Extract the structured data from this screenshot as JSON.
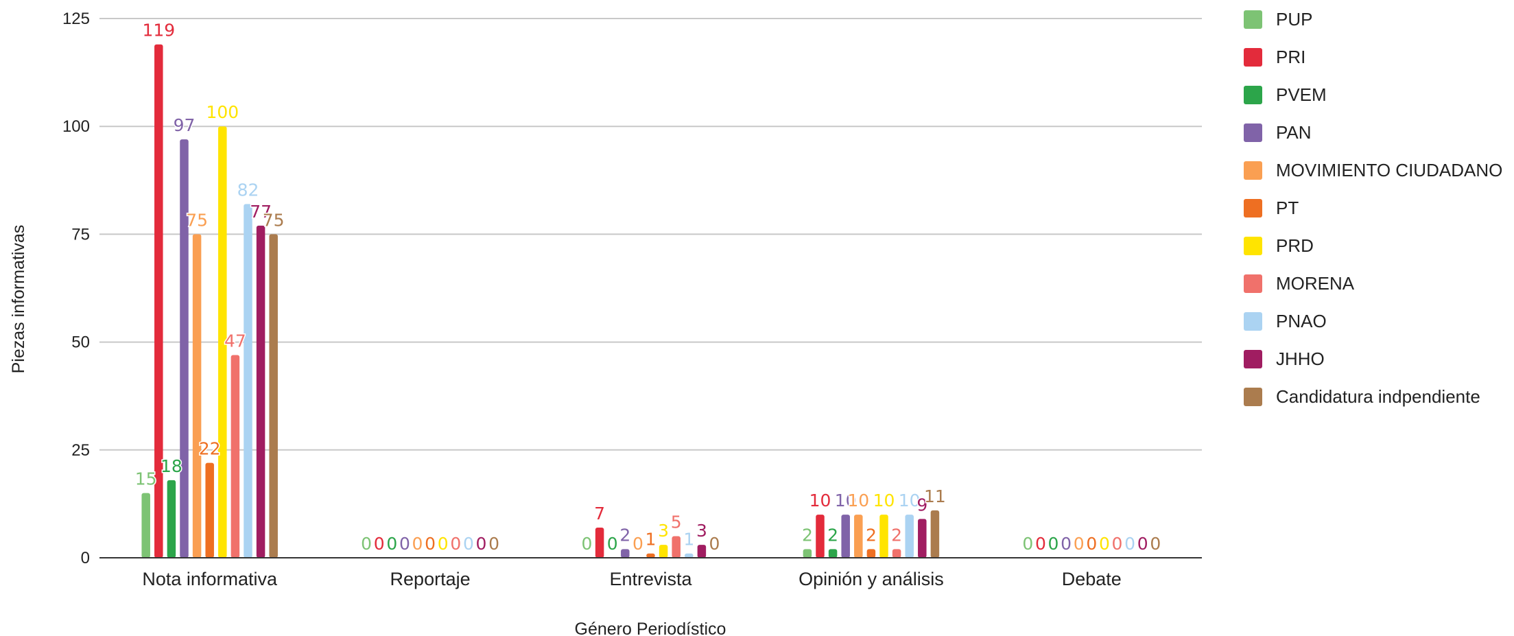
{
  "chart_data": {
    "type": "bar",
    "title": "",
    "xlabel": "Género Periodístico",
    "ylabel": "Piezas informativas",
    "ylim": [
      0,
      125
    ],
    "yticks": [
      0,
      25,
      50,
      75,
      100,
      125
    ],
    "grid": true,
    "legend_position": "right",
    "categories": [
      "Nota informativa",
      "Reportaje",
      "Entrevista",
      "Opinión y análisis",
      "Debate"
    ],
    "series": [
      {
        "name": "PUP",
        "color": "#7dc374",
        "values": [
          15,
          0,
          0,
          2,
          0
        ]
      },
      {
        "name": "PRI",
        "color": "#e32b3b",
        "values": [
          119,
          0,
          7,
          10,
          0
        ]
      },
      {
        "name": "PVEM",
        "color": "#2ca54a",
        "values": [
          18,
          0,
          0,
          2,
          0
        ]
      },
      {
        "name": "PAN",
        "color": "#8063a8",
        "values": [
          97,
          0,
          2,
          10,
          0
        ]
      },
      {
        "name": "MOVIMIENTO CIUDADANO",
        "color": "#fa9f52",
        "values": [
          75,
          0,
          0,
          10,
          0
        ]
      },
      {
        "name": "PT",
        "color": "#ee6f22",
        "values": [
          22,
          0,
          1,
          2,
          0
        ]
      },
      {
        "name": "PRD",
        "color": "#ffe400",
        "values": [
          100,
          0,
          3,
          10,
          0
        ]
      },
      {
        "name": "MORENA",
        "color": "#f0716b",
        "values": [
          47,
          0,
          5,
          2,
          0
        ]
      },
      {
        "name": "PNAO",
        "color": "#abd3f2",
        "values": [
          82,
          0,
          1,
          10,
          0
        ]
      },
      {
        "name": "JHHO",
        "color": "#a01d61",
        "values": [
          77,
          0,
          3,
          9,
          0
        ]
      },
      {
        "name": "Candidatura indpendiente",
        "color": "#ab7c4e",
        "values": [
          75,
          0,
          0,
          11,
          0
        ]
      }
    ]
  }
}
